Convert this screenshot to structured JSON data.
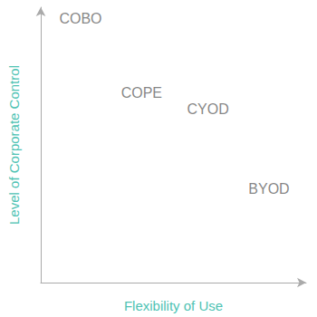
{
  "chart_data": {
    "type": "scatter",
    "x_label": "Flexibility of Use",
    "y_label": "Level of Corporate Control",
    "labels": [
      "COBO",
      "COPE",
      "CYOD",
      "BYOD"
    ],
    "x": [
      1.5,
      3.8,
      6.3,
      8.6
    ],
    "values": [
      9.6,
      6.9,
      6.3,
      3.4
    ],
    "xlim": [
      0,
      10
    ],
    "ylim": [
      0,
      10
    ],
    "tick_labels": false,
    "grid": false,
    "marker": "none",
    "color": "#666666"
  }
}
